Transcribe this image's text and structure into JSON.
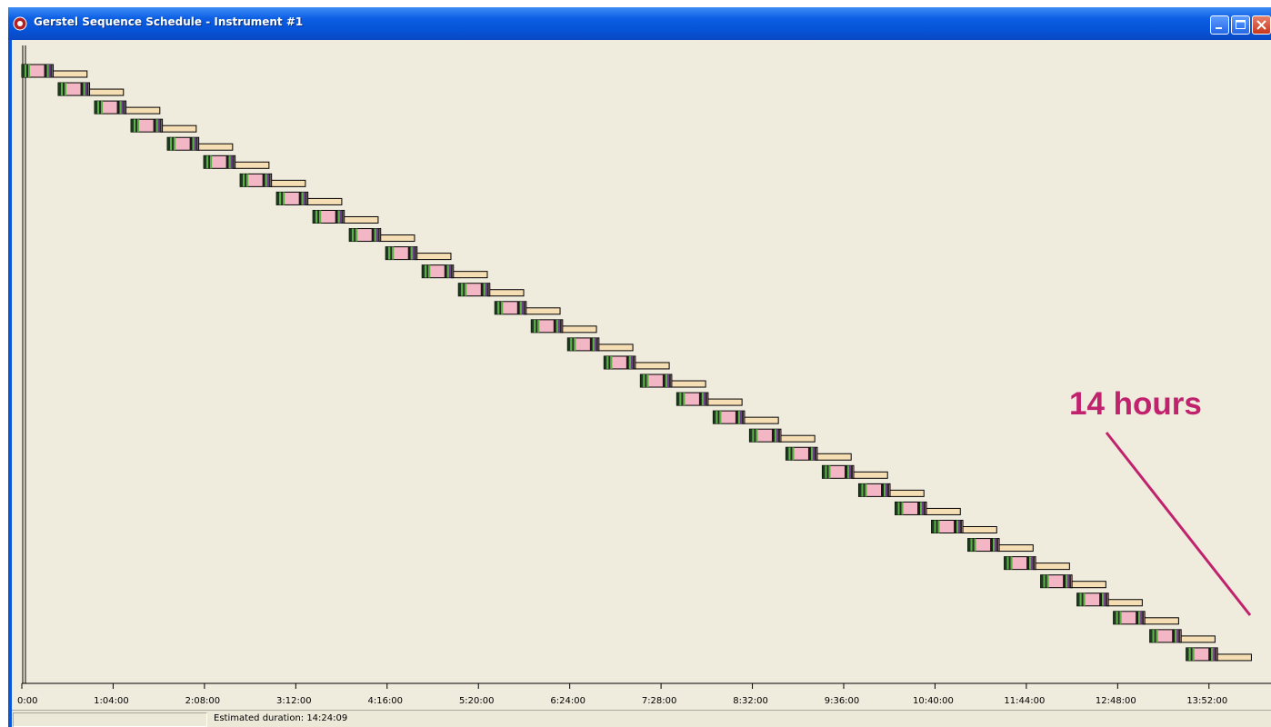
{
  "window": {
    "title": "Gerstel Sequence Schedule - Instrument #1",
    "icon": "gerstel-app-icon",
    "controls": [
      "minimize",
      "maximize",
      "close"
    ]
  },
  "timeline": {
    "tick_labels": [
      "0:00",
      "1:04:00",
      "2:08:00",
      "3:12:00",
      "4:16:00",
      "5:20:00",
      "6:24:00",
      "7:28:00",
      "8:32:00",
      "9:36:00",
      "10:40:00",
      "11:44:00",
      "12:48:00",
      "13:52:00"
    ],
    "tick_minutes": [
      0,
      64,
      128,
      192,
      256,
      320,
      384,
      448,
      512,
      576,
      640,
      704,
      768,
      832
    ],
    "axis_range_minutes": [
      0,
      864
    ],
    "run_count": 33,
    "run_interval_minutes": 25.5,
    "prep_block_minutes": 22,
    "run_block_minutes": 25,
    "colors": {
      "background": "#efebdd",
      "prep_block": "#f2b6c4",
      "run_block": "#f5ddb4",
      "stripe_dark": "#1c3a1c",
      "stripe_green": "#5ab040"
    }
  },
  "status": {
    "duration": "Estimated duration: 14:24:09"
  },
  "annotation": {
    "text": "14 hours",
    "color": "#c0226e"
  }
}
